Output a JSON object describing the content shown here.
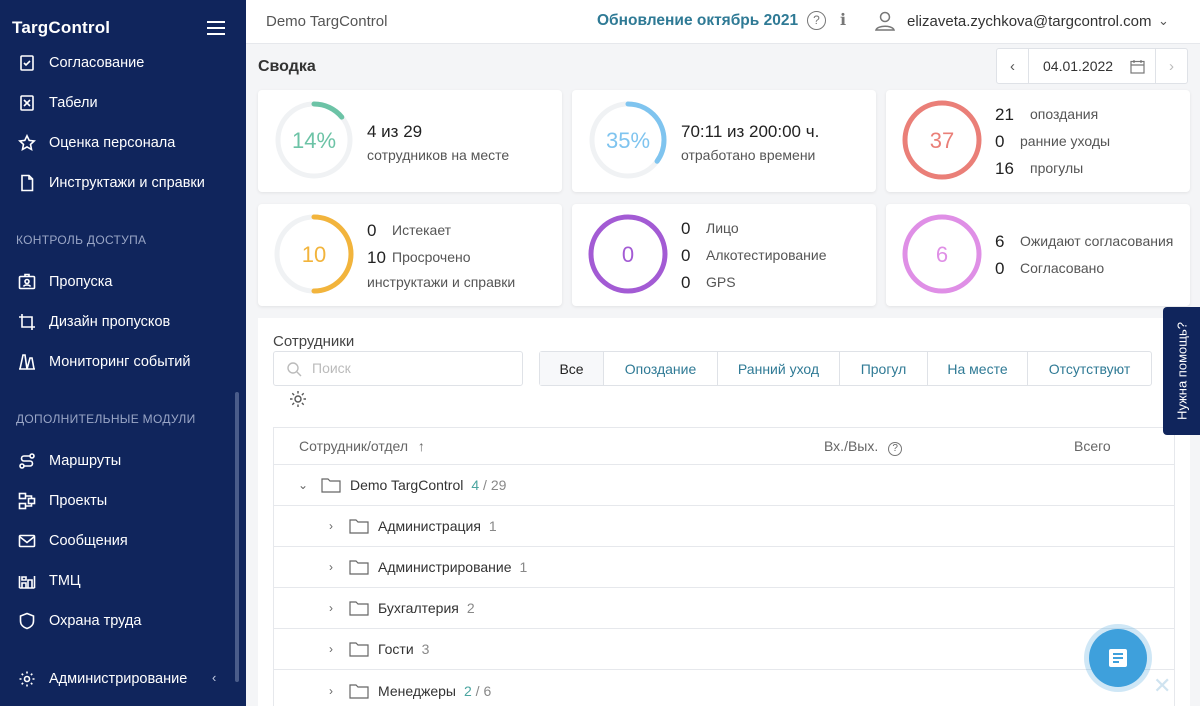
{
  "sidebar": {
    "logo": "TargControl",
    "items_top": [
      {
        "label": "Согласование",
        "icon": "approval-icon"
      },
      {
        "label": "Табели",
        "icon": "timesheet-icon"
      },
      {
        "label": "Оценка персонала",
        "icon": "star-icon"
      },
      {
        "label": "Инструктажи и справки",
        "icon": "document-icon"
      }
    ],
    "section_access": "КОНТРОЛЬ ДОСТУПА",
    "items_access": [
      {
        "label": "Пропуска",
        "icon": "badge-icon"
      },
      {
        "label": "Дизайн пропусков",
        "icon": "crop-icon"
      },
      {
        "label": "Мониторинг событий",
        "icon": "monitoring-icon"
      }
    ],
    "section_modules": "ДОПОЛНИТЕЛЬНЫЕ МОДУЛИ",
    "items_modules": [
      {
        "label": "Маршруты",
        "icon": "route-icon"
      },
      {
        "label": "Проекты",
        "icon": "projects-icon"
      },
      {
        "label": "Сообщения",
        "icon": "mail-icon"
      },
      {
        "label": "ТМЦ",
        "icon": "inventory-icon"
      },
      {
        "label": "Охрана труда",
        "icon": "shield-icon"
      }
    ],
    "admin": {
      "label": "Администрирование",
      "icon": "gear-icon"
    }
  },
  "header": {
    "company": "Demo TargControl",
    "update": "Обновление октябрь 2021",
    "user": "elizaveta.zychkova@targcontrol.com"
  },
  "main": {
    "title": "Сводка",
    "date": "04.01.2022"
  },
  "cards": {
    "presence": {
      "ring": "14%",
      "ring_fraction": 0.14,
      "big": "4 из 29",
      "small": "сотрудников на месте",
      "color": "#6cc3a6"
    },
    "worktime": {
      "ring": "35%",
      "ring_fraction": 0.35,
      "big": "70:11 из 200:00 ч.",
      "small": "отработано времени",
      "color": "#7fc4ef"
    },
    "violations": {
      "ring": "37",
      "color": "#ea7f78",
      "rows": [
        {
          "n": "21",
          "label": "опоздания"
        },
        {
          "n": "0",
          "label": "ранние уходы"
        },
        {
          "n": "16",
          "label": "прогулы"
        }
      ]
    },
    "briefings": {
      "ring": "10",
      "color": "#f2b43c",
      "rows": [
        {
          "n": "0",
          "label": "Истекает"
        },
        {
          "n": "10",
          "label": "Просрочено"
        }
      ],
      "footer": "инструктажи и справки"
    },
    "checks": {
      "ring": "0",
      "color": "#a35bd4",
      "rows": [
        {
          "n": "0",
          "label": "Лицо"
        },
        {
          "n": "0",
          "label": "Алкотестирование"
        },
        {
          "n": "0",
          "label": "GPS"
        }
      ]
    },
    "approvals": {
      "ring": "6",
      "color": "#df8fe6",
      "rows": [
        {
          "n": "6",
          "label": "Ожидают согласования"
        },
        {
          "n": "0",
          "label": "Согласовано"
        }
      ]
    }
  },
  "employees": {
    "title": "Сотрудники",
    "search_placeholder": "Поиск",
    "filters": [
      "Все",
      "Опоздание",
      "Ранний уход",
      "Прогул",
      "На месте",
      "Отсутствуют"
    ],
    "columns": {
      "employee": "Сотрудник/отдел",
      "sort_arrow": "↑",
      "inout": "Вх./Вых.",
      "total": "Всего"
    },
    "rows": [
      {
        "name": "Demo TargControl",
        "on": "4",
        "rest": " / 29",
        "expanded": true,
        "level": 0
      },
      {
        "name": "Администрация",
        "on": "",
        "rest": "1",
        "expanded": false,
        "level": 1
      },
      {
        "name": "Администрирование",
        "on": "",
        "rest": "1",
        "expanded": false,
        "level": 1
      },
      {
        "name": "Бухгалтерия",
        "on": "",
        "rest": "2",
        "expanded": false,
        "level": 1
      },
      {
        "name": "Гости",
        "on": "",
        "rest": "3",
        "expanded": false,
        "level": 1
      },
      {
        "name": "Менеджеры",
        "on": "2",
        "rest": " / 6",
        "expanded": false,
        "level": 1
      }
    ]
  },
  "help_tab": "Нужна помощь?"
}
